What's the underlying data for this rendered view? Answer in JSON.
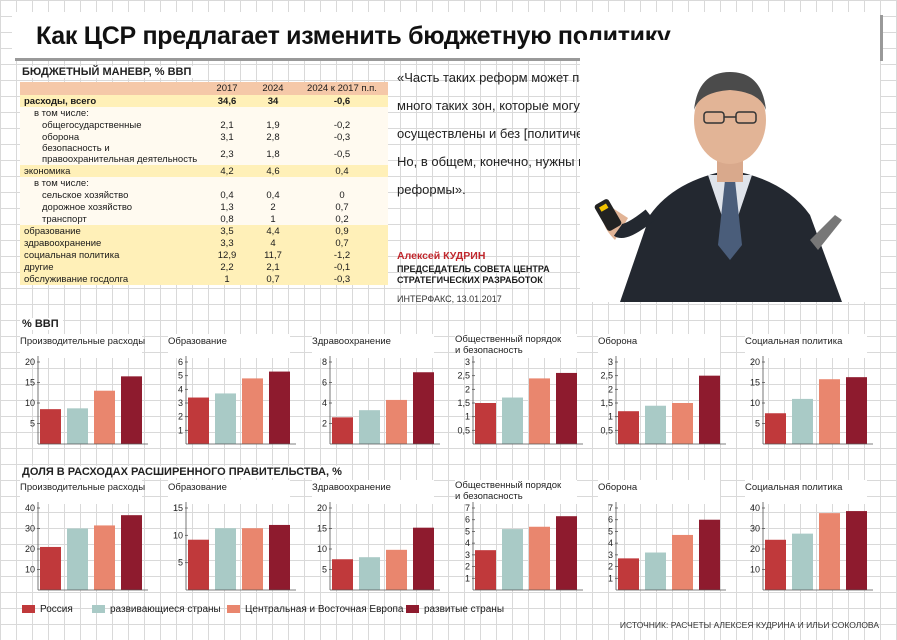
{
  "title": "Как ЦСР предлагает изменить бюджетную политику",
  "table": {
    "title": "БЮДЖЕТНЫЙ МАНЕВР, % ВВП",
    "headers": [
      "",
      "2017",
      "2024",
      "2024 к 2017 п.п."
    ],
    "rows": [
      {
        "label": "расходы, всего",
        "v2017": "34,6",
        "v2024": "34",
        "diff": "-0,6",
        "style": "bold"
      },
      {
        "label": "в том числе:",
        "v2017": "",
        "v2024": "",
        "diff": "",
        "style": "sub-ind"
      },
      {
        "label": "общегосударственные",
        "v2017": "2,1",
        "v2024": "1,9",
        "diff": "-0,2",
        "style": "sub"
      },
      {
        "label": "оборона",
        "v2017": "3,1",
        "v2024": "2,8",
        "diff": "-0,3",
        "style": "sub"
      },
      {
        "label": "безопасность и правоохранительная деятельность",
        "v2017": "2,3",
        "v2024": "1,8",
        "diff": "-0,5",
        "style": "sub-tall"
      },
      {
        "label": "экономика",
        "v2017": "4,2",
        "v2024": "4,6",
        "diff": "0,4",
        "style": "grp"
      },
      {
        "label": "в том числе:",
        "v2017": "",
        "v2024": "",
        "diff": "",
        "style": "sub-ind"
      },
      {
        "label": "сельское хозяйство",
        "v2017": "0,4",
        "v2024": "0,4",
        "diff": "0",
        "style": "sub"
      },
      {
        "label": "дорожное хозяйство",
        "v2017": "1,3",
        "v2024": "2",
        "diff": "0,7",
        "style": "sub"
      },
      {
        "label": "транспорт",
        "v2017": "0,8",
        "v2024": "1",
        "diff": "0,2",
        "style": "sub"
      },
      {
        "label": "образование",
        "v2017": "3,5",
        "v2024": "4,4",
        "diff": "0,9",
        "style": "grp"
      },
      {
        "label": "здравоохранение",
        "v2017": "3,3",
        "v2024": "4",
        "diff": "0,7",
        "style": "grp"
      },
      {
        "label": "социальная политика",
        "v2017": "12,9",
        "v2024": "11,7",
        "diff": "-1,2",
        "style": "grp"
      },
      {
        "label": "другие",
        "v2017": "2,2",
        "v2024": "2,1",
        "diff": "-0,1",
        "style": "grp"
      },
      {
        "label": "обслуживание госдолга",
        "v2017": "1",
        "v2024": "0,7",
        "diff": "-0,3",
        "style": "grp"
      }
    ]
  },
  "quote": {
    "text": "«Часть таких реформ может пройти, там много таких зон, которые могут быть осуществлены и без [политических реформ]. Но, в общем, конечно, нужны и политические реформы».",
    "author": "Алексей КУДРИН",
    "role": "ПРЕДСЕДАТЕЛЬ СОВЕТА ЦЕНТРА СТРАТЕГИЧЕСКИХ РАЗРАБОТОК",
    "source": "ИНТЕРФАКС, 13.01.2017"
  },
  "section1_title": "% ВВП",
  "section2_title": "ДОЛЯ В РАСХОДАХ РАСШИРЕННОГО ПРАВИТЕЛЬСТВА, %",
  "colors": [
    "#c0393b",
    "#a9cac6",
    "#e9866e",
    "#8e1b2e"
  ],
  "legend": [
    "Россия",
    "развивающиеся страны",
    "Центральная и Восточная Европа",
    "развитые страны"
  ],
  "source": "ИСТОЧНИК: РАСЧЕТЫ АЛЕКСЕЯ КУДРИНА И ИЛЬИ СОКОЛОВА",
  "chart_data": [
    {
      "type": "bar",
      "title": "Производительные расходы",
      "yticks": [
        "20",
        "15",
        "10",
        "5"
      ],
      "ylim": [
        0,
        20
      ],
      "values": [
        8.5,
        8.7,
        13,
        16.5
      ]
    },
    {
      "type": "bar",
      "title": "Образование",
      "yticks": [
        "6",
        "5",
        "4",
        "3",
        "2",
        "1"
      ],
      "ylim": [
        0,
        6
      ],
      "values": [
        3.4,
        3.7,
        4.8,
        5.3
      ]
    },
    {
      "type": "bar",
      "title": "Здравоохранение",
      "yticks": [
        "8",
        "6",
        "4",
        "2"
      ],
      "ylim": [
        0,
        8
      ],
      "values": [
        2.6,
        3.3,
        4.3,
        7
      ]
    },
    {
      "type": "bar",
      "title": "Общественный порядок и безопасность",
      "yticks": [
        "3",
        "2,5",
        "2",
        "1,5",
        "1",
        "0,5"
      ],
      "ylim": [
        0,
        3
      ],
      "values": [
        1.5,
        1.7,
        2.4,
        2.6
      ]
    },
    {
      "type": "bar",
      "title": "Оборона",
      "yticks": [
        "3",
        "2,5",
        "2",
        "1,5",
        "1",
        "0,5"
      ],
      "ylim": [
        0,
        3
      ],
      "values": [
        1.2,
        1.4,
        1.5,
        2.5
      ]
    },
    {
      "type": "bar",
      "title": "Социальная политика",
      "yticks": [
        "20",
        "15",
        "10",
        "5"
      ],
      "ylim": [
        0,
        20
      ],
      "values": [
        7.5,
        11,
        15.8,
        16.3
      ]
    },
    {
      "type": "bar",
      "title": "Производительные расходы",
      "yticks": [
        "40",
        "30",
        "20",
        "10"
      ],
      "ylim": [
        0,
        40
      ],
      "values": [
        21,
        30,
        31.5,
        36.5
      ]
    },
    {
      "type": "bar",
      "title": "Образование",
      "yticks": [
        "15",
        "10",
        "5"
      ],
      "ylim": [
        0,
        15
      ],
      "values": [
        9.2,
        11.3,
        11.3,
        11.9
      ]
    },
    {
      "type": "bar",
      "title": "Здравоохранение",
      "yticks": [
        "20",
        "15",
        "10",
        "5"
      ],
      "ylim": [
        0,
        20
      ],
      "values": [
        7.5,
        8,
        9.8,
        15.2
      ]
    },
    {
      "type": "bar",
      "title": "Общественный порядок и безопасность",
      "yticks": [
        "7",
        "6",
        "5",
        "4",
        "3",
        "2",
        "1"
      ],
      "ylim": [
        0,
        7
      ],
      "values": [
        3.4,
        5.2,
        5.4,
        6.3
      ]
    },
    {
      "type": "bar",
      "title": "Оборона",
      "yticks": [
        "7",
        "6",
        "5",
        "4",
        "3",
        "2",
        "1"
      ],
      "ylim": [
        0,
        7
      ],
      "values": [
        2.7,
        3.2,
        4.7,
        6
      ]
    },
    {
      "type": "bar",
      "title": "Социальная политика",
      "yticks": [
        "40",
        "30",
        "20",
        "10"
      ],
      "ylim": [
        0,
        40
      ],
      "values": [
        24.5,
        27.5,
        37.5,
        38.5
      ]
    }
  ]
}
